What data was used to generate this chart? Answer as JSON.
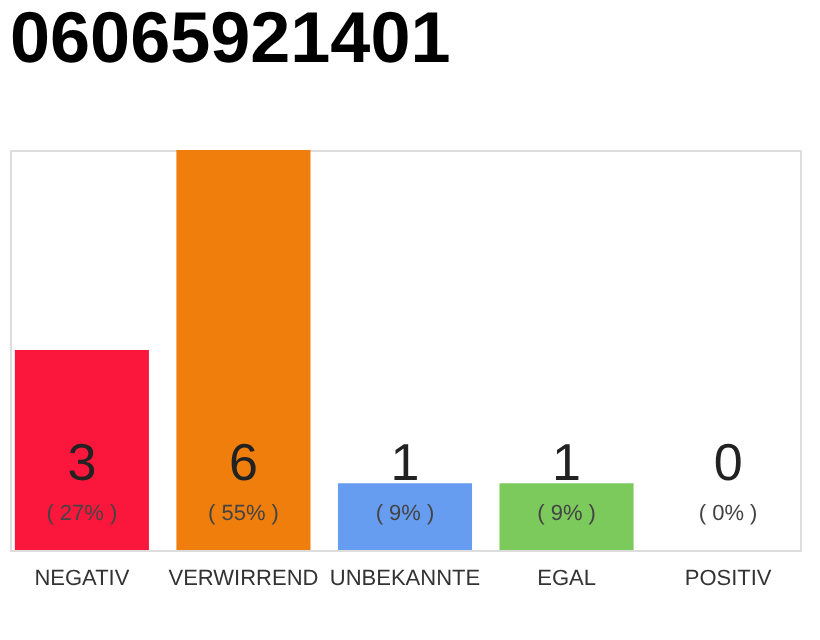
{
  "chart_data": {
    "type": "bar",
    "title": "06065921401",
    "categories": [
      "NEGATIV",
      "VERWIRREND",
      "UNBEKANNTE",
      "EGAL",
      "POSITIV"
    ],
    "values": [
      3,
      6,
      1,
      1,
      0
    ],
    "colors": [
      "#fb163c",
      "#f07e0d",
      "#669df0",
      "#7cc95c",
      "#22aa44"
    ],
    "value_labels": [
      "3",
      "6",
      "1",
      "1",
      "0"
    ],
    "annotations": [
      "( 27% )",
      "( 55% )",
      "( 9% )",
      "( 9% )",
      "( 0% )"
    ]
  }
}
